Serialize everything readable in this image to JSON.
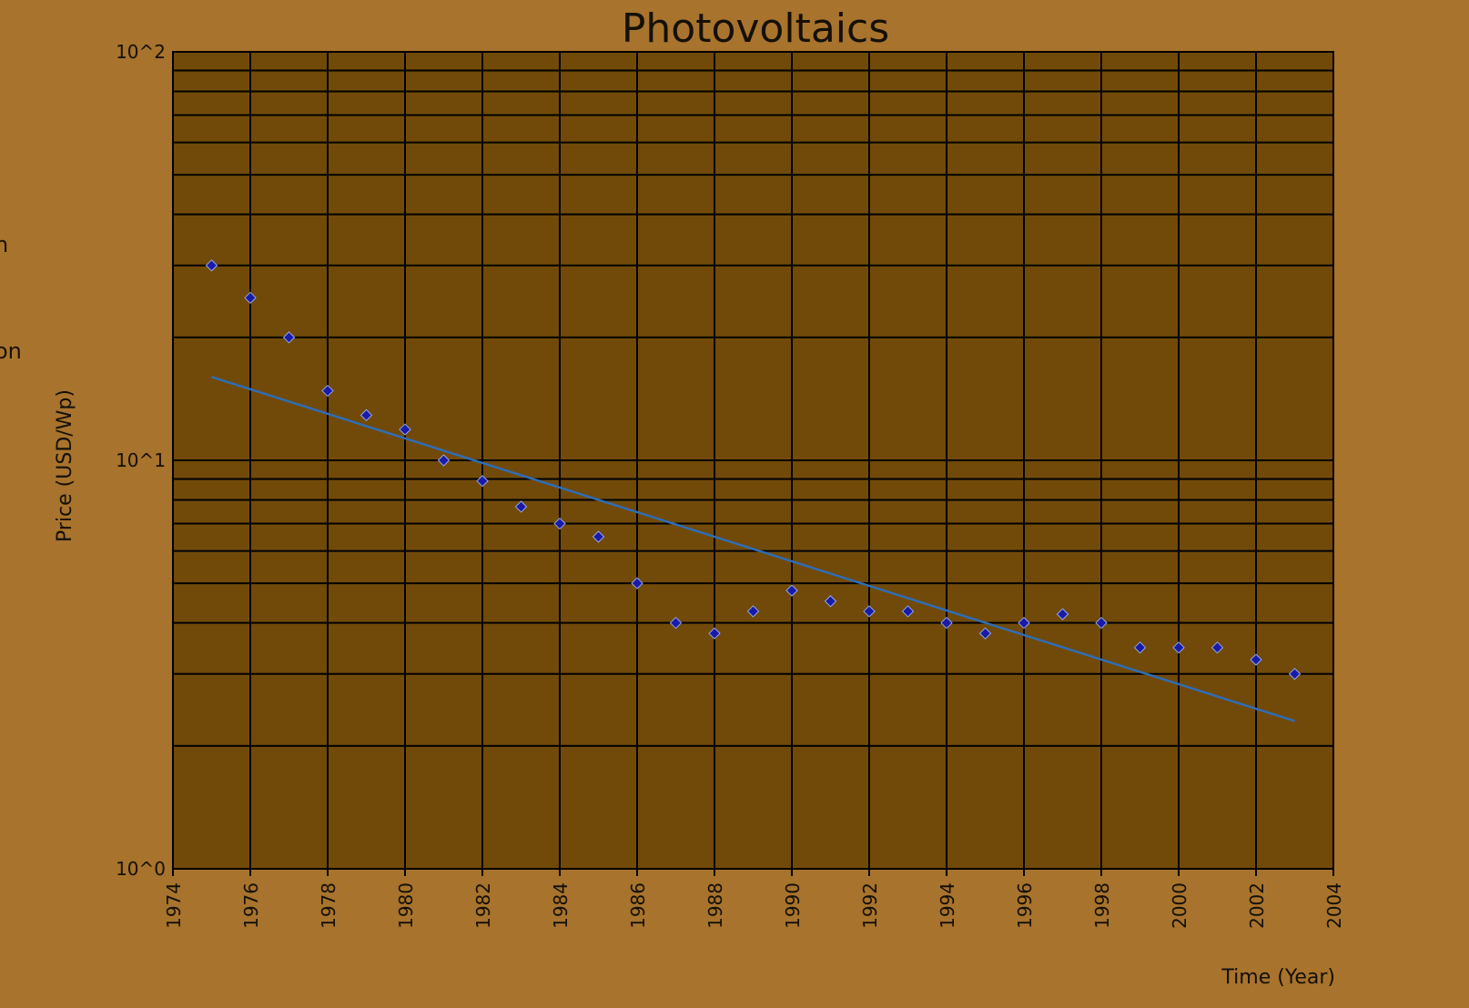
{
  "side_text": [
    "n",
    "on"
  ],
  "chart_data": {
    "type": "scatter",
    "title": "Photovoltaics",
    "xlabel": "Time (Year)",
    "ylabel": "Price (USD/Wp)",
    "xlim": [
      1974,
      2004
    ],
    "ylim": [
      1,
      100
    ],
    "y_scale": "log",
    "x_ticks": [
      1974,
      1976,
      1978,
      1980,
      1982,
      1984,
      1986,
      1988,
      1990,
      1992,
      1994,
      1996,
      1998,
      2000,
      2002,
      2004
    ],
    "y_tick_labels": [
      {
        "value": 1,
        "label": "10^0"
      },
      {
        "value": 10,
        "label": "10^1"
      },
      {
        "value": 100,
        "label": "10^2"
      }
    ],
    "grid": true,
    "series": [
      {
        "type": "scatter",
        "x": [
          1975,
          1976,
          1977,
          1978,
          1979,
          1980,
          1981,
          1982,
          1983,
          1984,
          1985,
          1986,
          1987,
          1988,
          1989,
          1990,
          1991,
          1992,
          1993,
          1994,
          1995,
          1996,
          1997,
          1998,
          1999,
          2000,
          2001,
          2002,
          2003
        ],
        "y": [
          30,
          25,
          20,
          14.8,
          12.9,
          11.9,
          10,
          8.9,
          7.7,
          7.0,
          6.5,
          5.0,
          4.0,
          3.77,
          4.27,
          4.8,
          4.52,
          4.27,
          4.27,
          4.0,
          3.77,
          4.0,
          4.2,
          4.0,
          3.48,
          3.48,
          3.48,
          3.25,
          3.0
        ],
        "color": "#1a1aa8"
      },
      {
        "type": "line",
        "x": [
          1975,
          2003
        ],
        "y": [
          16,
          2.3
        ],
        "color": "#2f6db5"
      }
    ],
    "colors": {
      "background": "#A8732C",
      "plot_area": "#714A09",
      "grid": "#000000"
    }
  }
}
